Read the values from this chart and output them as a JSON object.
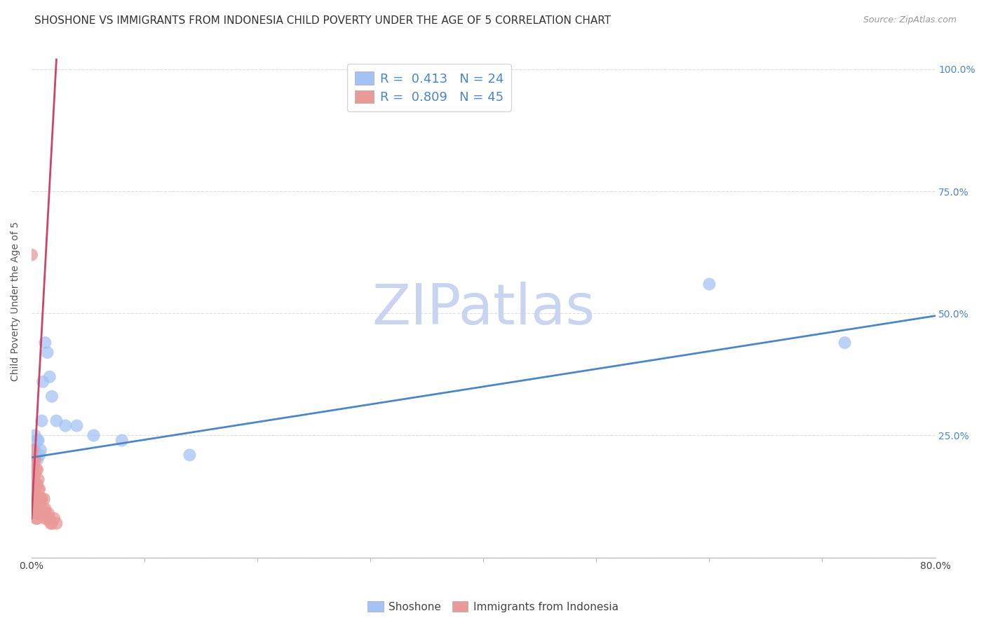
{
  "title": "SHOSHONE VS IMMIGRANTS FROM INDONESIA CHILD POVERTY UNDER THE AGE OF 5 CORRELATION CHART",
  "source": "Source: ZipAtlas.com",
  "ylabel": "Child Poverty Under the Age of 5",
  "watermark_zip": "ZIP",
  "watermark_atlas": "atlas",
  "xlim": [
    0.0,
    0.8
  ],
  "ylim": [
    0.0,
    1.05
  ],
  "legend_blue_label": "R =  0.413   N = 24",
  "legend_pink_label": "R =  0.809   N = 45",
  "blue_color": "#a4c2f4",
  "pink_color": "#ea9999",
  "blue_line_color": "#4a86c8",
  "pink_line_color": "#cc4466",
  "shoshone_x": [
    0.001,
    0.002,
    0.003,
    0.003,
    0.004,
    0.005,
    0.005,
    0.006,
    0.007,
    0.008,
    0.009,
    0.01,
    0.012,
    0.014,
    0.016,
    0.018,
    0.022,
    0.03,
    0.04,
    0.055,
    0.08,
    0.14,
    0.6,
    0.72
  ],
  "shoshone_y": [
    0.21,
    0.22,
    0.22,
    0.25,
    0.21,
    0.2,
    0.24,
    0.24,
    0.21,
    0.22,
    0.28,
    0.36,
    0.44,
    0.42,
    0.37,
    0.33,
    0.28,
    0.27,
    0.27,
    0.25,
    0.24,
    0.21,
    0.56,
    0.44
  ],
  "indonesia_x": [
    0.0,
    0.001,
    0.001,
    0.002,
    0.002,
    0.002,
    0.003,
    0.003,
    0.003,
    0.003,
    0.003,
    0.004,
    0.004,
    0.004,
    0.004,
    0.004,
    0.005,
    0.005,
    0.005,
    0.005,
    0.005,
    0.006,
    0.006,
    0.006,
    0.006,
    0.007,
    0.007,
    0.007,
    0.008,
    0.008,
    0.009,
    0.009,
    0.01,
    0.011,
    0.011,
    0.012,
    0.012,
    0.013,
    0.014,
    0.015,
    0.016,
    0.017,
    0.018,
    0.02,
    0.022
  ],
  "indonesia_y": [
    0.62,
    0.22,
    0.18,
    0.2,
    0.17,
    0.14,
    0.2,
    0.17,
    0.14,
    0.12,
    0.1,
    0.18,
    0.15,
    0.12,
    0.1,
    0.08,
    0.18,
    0.15,
    0.12,
    0.1,
    0.08,
    0.16,
    0.14,
    0.12,
    0.09,
    0.14,
    0.12,
    0.09,
    0.12,
    0.1,
    0.12,
    0.09,
    0.1,
    0.12,
    0.09,
    0.1,
    0.08,
    0.09,
    0.08,
    0.09,
    0.08,
    0.07,
    0.07,
    0.08,
    0.07
  ],
  "blue_trend_x0": 0.0,
  "blue_trend_x1": 0.8,
  "blue_trend_y0": 0.205,
  "blue_trend_y1": 0.495,
  "pink_trend_x0": 0.0,
  "pink_trend_x1": 0.022,
  "pink_trend_y0": 0.08,
  "pink_trend_y1": 1.02,
  "background_color": "#ffffff",
  "grid_color": "#dddddd",
  "title_fontsize": 11,
  "axis_label_fontsize": 10,
  "tick_fontsize": 10,
  "legend_fontsize": 13,
  "watermark_fontsize": 58,
  "watermark_color": "#c8d4f0",
  "source_fontsize": 9,
  "xtick_minor_positions": [
    0.1,
    0.2,
    0.3,
    0.4,
    0.5,
    0.6,
    0.7
  ]
}
